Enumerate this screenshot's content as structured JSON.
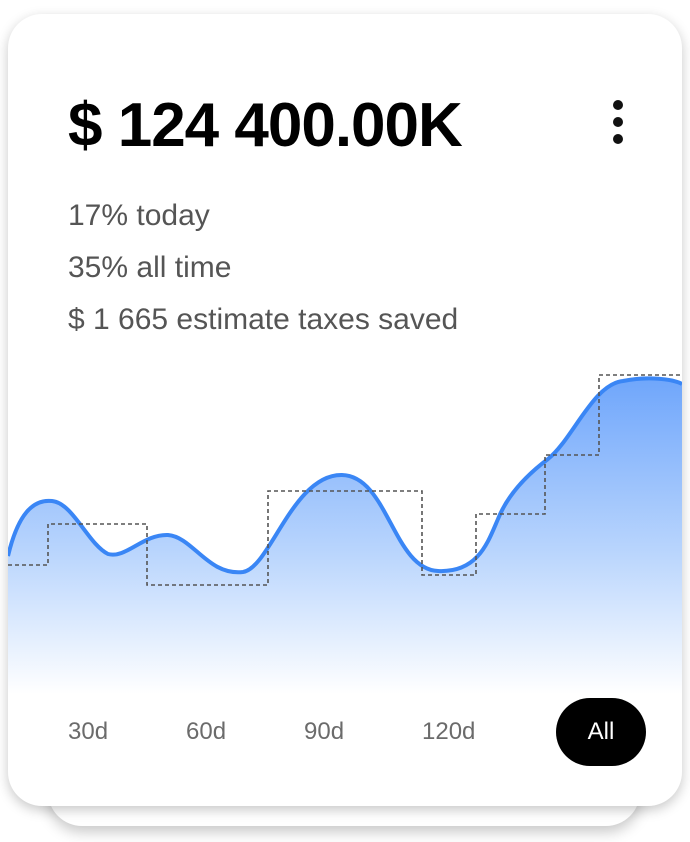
{
  "balance": "$ 124 400.00K",
  "stats": [
    "17% today",
    "35% all time",
    "$ 1 665 estimate taxes saved"
  ],
  "menu_icon": "more-vertical-icon",
  "colors": {
    "accent": "#3a86f5",
    "fill_top": "#7fb1fb",
    "fill_bottom": "#ffffff",
    "active_bg": "#000000"
  },
  "ranges": [
    {
      "label": "30d"
    },
    {
      "label": "60d"
    },
    {
      "label": "90d"
    },
    {
      "label": "120d"
    },
    {
      "label": "All",
      "active": true
    }
  ]
}
